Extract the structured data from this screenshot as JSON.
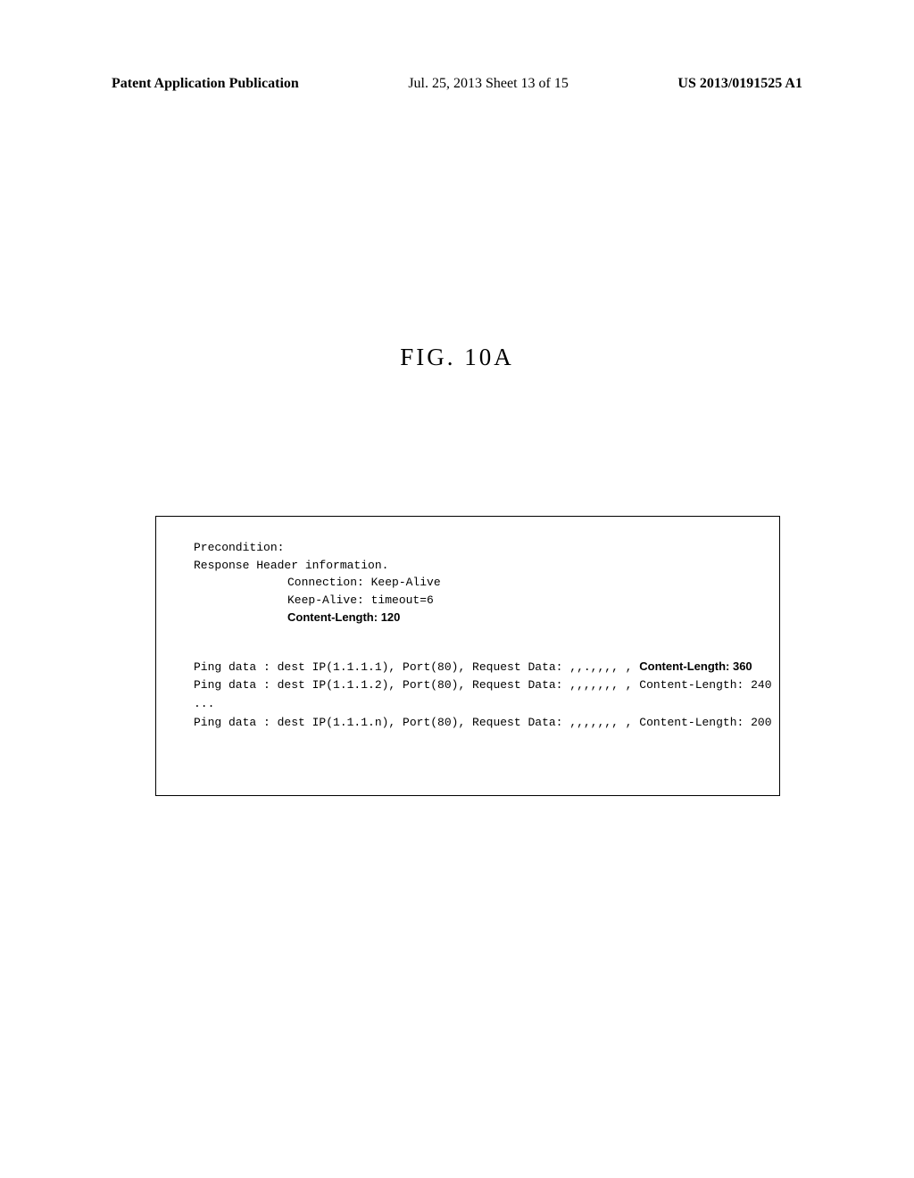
{
  "header": {
    "left": "Patent Application Publication",
    "center": "Jul. 25, 2013  Sheet 13 of 15",
    "right": "US 2013/0191525 A1"
  },
  "figure_title": "FIG. 10A",
  "figure_box": {
    "precondition_label": "Precondition:",
    "response_header_label": "Response Header information.",
    "connection_line": "Connection: Keep-Alive",
    "keepalive_line": "Keep-Alive: timeout=6",
    "content_length_bold": "Content-Length: 120",
    "ping_data": [
      {
        "prefix": "Ping data : dest IP(1.1.1.1), Port(80), Request Data: ,,.,,,, , ",
        "suffix_bold": true,
        "suffix": "Content-Length: 360"
      },
      {
        "prefix": "Ping data : dest IP(1.1.1.2), Port(80), Request Data: ,,,,,,, , Content-Length: 240",
        "suffix_bold": false,
        "suffix": ""
      }
    ],
    "ellipsis": "...",
    "ping_last": {
      "prefix": "Ping data : dest IP(1.1.1.n), Port(80), Request Data: ,,,,,,, , Content-Length: 200",
      "suffix_bold": false,
      "suffix": ""
    }
  }
}
